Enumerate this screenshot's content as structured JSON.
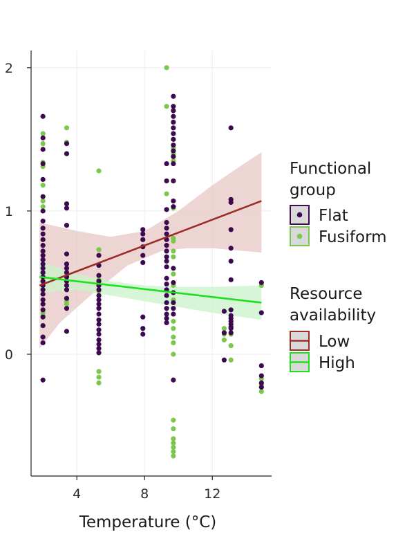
{
  "chart_data": {
    "type": "scatter",
    "title": "",
    "xlabel": "Temperature (°C)",
    "ylabel": "",
    "xlim": [
      1.3,
      15.5
    ],
    "ylim": [
      -0.85,
      2.12
    ],
    "x_ticks": [
      4,
      8,
      12
    ],
    "y_ticks": [
      0,
      1,
      2
    ],
    "grid": true,
    "legend_position": "right",
    "colors": {
      "flat": "#3d0a4f",
      "fusiform": "#7cc84f",
      "low": "#9b2d26",
      "low_band": "#e7c7c6",
      "high": "#1fe01f",
      "high_band": "#c9f3c9"
    },
    "legend": {
      "functional_group": {
        "title_lines": [
          "Functional",
          "group"
        ],
        "entries": [
          "Flat",
          "Fusiform"
        ]
      },
      "resource_availability": {
        "title_lines": [
          "Resource",
          "availability"
        ],
        "entries": [
          "Low",
          "High"
        ]
      }
    },
    "series": [
      {
        "name": "Flat",
        "points": [
          [
            2.0,
            1.66
          ],
          [
            2.0,
            1.51
          ],
          [
            2.0,
            1.43
          ],
          [
            2.0,
            1.33
          ],
          [
            2.0,
            1.22
          ],
          [
            2.0,
            1.1
          ],
          [
            2.0,
            1.0
          ],
          [
            2.0,
            0.93
          ],
          [
            2.0,
            0.88
          ],
          [
            2.0,
            0.84
          ],
          [
            2.0,
            0.8
          ],
          [
            2.0,
            0.76
          ],
          [
            2.0,
            0.72
          ],
          [
            2.0,
            0.69
          ],
          [
            2.0,
            0.66
          ],
          [
            2.0,
            0.63
          ],
          [
            2.0,
            0.6
          ],
          [
            2.0,
            0.57
          ],
          [
            2.0,
            0.54
          ],
          [
            2.0,
            0.51
          ],
          [
            2.0,
            0.48
          ],
          [
            2.0,
            0.45
          ],
          [
            2.0,
            0.42
          ],
          [
            2.0,
            0.38
          ],
          [
            2.0,
            0.35
          ],
          [
            2.0,
            0.31
          ],
          [
            2.0,
            0.26
          ],
          [
            2.0,
            0.2
          ],
          [
            2.0,
            0.12
          ],
          [
            2.0,
            0.08
          ],
          [
            2.0,
            -0.18
          ],
          [
            3.4,
            1.47
          ],
          [
            3.4,
            1.4
          ],
          [
            3.4,
            1.05
          ],
          [
            3.4,
            1.02
          ],
          [
            3.4,
            0.9
          ],
          [
            3.4,
            0.7
          ],
          [
            3.4,
            0.63
          ],
          [
            3.4,
            0.6
          ],
          [
            3.4,
            0.57
          ],
          [
            3.4,
            0.54
          ],
          [
            3.4,
            0.51
          ],
          [
            3.4,
            0.48
          ],
          [
            3.4,
            0.45
          ],
          [
            3.4,
            0.39
          ],
          [
            3.4,
            0.32
          ],
          [
            3.4,
            0.16
          ],
          [
            5.3,
            0.69
          ],
          [
            5.3,
            0.62
          ],
          [
            5.3,
            0.55
          ],
          [
            5.3,
            0.51
          ],
          [
            5.3,
            0.48
          ],
          [
            5.3,
            0.45
          ],
          [
            5.3,
            0.41
          ],
          [
            5.3,
            0.38
          ],
          [
            5.3,
            0.35
          ],
          [
            5.3,
            0.32
          ],
          [
            5.3,
            0.28
          ],
          [
            5.3,
            0.24
          ],
          [
            5.3,
            0.21
          ],
          [
            5.3,
            0.17
          ],
          [
            5.3,
            0.14
          ],
          [
            5.3,
            0.1
          ],
          [
            5.3,
            0.07
          ],
          [
            5.3,
            0.04
          ],
          [
            5.3,
            0.01
          ],
          [
            7.9,
            0.87
          ],
          [
            7.9,
            0.84
          ],
          [
            7.9,
            0.8
          ],
          [
            7.9,
            0.75
          ],
          [
            7.9,
            0.69
          ],
          [
            7.9,
            0.64
          ],
          [
            7.9,
            0.26
          ],
          [
            7.9,
            0.18
          ],
          [
            7.9,
            0.14
          ],
          [
            9.3,
            1.33
          ],
          [
            9.3,
            1.21
          ],
          [
            9.3,
            1.01
          ],
          [
            9.3,
            0.92
          ],
          [
            9.3,
            0.88
          ],
          [
            9.3,
            0.84
          ],
          [
            9.3,
            0.8
          ],
          [
            9.3,
            0.76
          ],
          [
            9.3,
            0.72
          ],
          [
            9.3,
            0.68
          ],
          [
            9.3,
            0.65
          ],
          [
            9.3,
            0.61
          ],
          [
            9.3,
            0.53
          ],
          [
            9.3,
            0.49
          ],
          [
            9.3,
            0.45
          ],
          [
            9.3,
            0.41
          ],
          [
            9.3,
            0.36
          ],
          [
            9.3,
            0.32
          ],
          [
            9.3,
            0.28
          ],
          [
            9.3,
            0.25
          ],
          [
            9.3,
            0.22
          ],
          [
            9.7,
            1.8
          ],
          [
            9.7,
            1.73
          ],
          [
            9.7,
            1.7
          ],
          [
            9.7,
            1.66
          ],
          [
            9.7,
            1.62
          ],
          [
            9.7,
            1.58
          ],
          [
            9.7,
            1.54
          ],
          [
            9.7,
            1.5
          ],
          [
            9.7,
            1.46
          ],
          [
            9.7,
            1.42
          ],
          [
            9.7,
            1.38
          ],
          [
            9.7,
            1.33
          ],
          [
            9.7,
            1.21
          ],
          [
            9.7,
            1.07
          ],
          [
            9.7,
            1.03
          ],
          [
            9.7,
            0.6
          ],
          [
            9.7,
            0.5
          ],
          [
            9.7,
            0.43
          ],
          [
            9.7,
            0.36
          ],
          [
            9.7,
            0.32
          ],
          [
            9.7,
            0.28
          ],
          [
            9.7,
            -0.18
          ],
          [
            13.1,
            1.58
          ],
          [
            13.1,
            1.08
          ],
          [
            13.1,
            1.06
          ],
          [
            13.1,
            0.87
          ],
          [
            13.1,
            0.74
          ],
          [
            13.1,
            0.65
          ],
          [
            13.1,
            0.52
          ],
          [
            13.1,
            0.31
          ],
          [
            13.1,
            0.27
          ],
          [
            13.1,
            0.25
          ],
          [
            13.1,
            0.23
          ],
          [
            13.1,
            0.21
          ],
          [
            13.1,
            0.19
          ],
          [
            13.1,
            0.18
          ],
          [
            13.1,
            0.15
          ],
          [
            12.7,
            0.3
          ],
          [
            12.7,
            0.15
          ],
          [
            12.7,
            -0.04
          ],
          [
            14.9,
            0.5
          ],
          [
            14.9,
            0.29
          ],
          [
            14.9,
            -0.08
          ],
          [
            14.9,
            -0.15
          ],
          [
            14.9,
            -0.2
          ],
          [
            14.9,
            -0.23
          ]
        ]
      },
      {
        "name": "Fusiform",
        "points": [
          [
            2.0,
            1.54
          ],
          [
            2.0,
            1.47
          ],
          [
            2.0,
            1.34
          ],
          [
            2.0,
            1.31
          ],
          [
            2.0,
            1.18
          ],
          [
            2.0,
            1.07
          ],
          [
            2.0,
            1.03
          ],
          [
            2.0,
            0.29
          ],
          [
            2.0,
            0.27
          ],
          [
            3.4,
            1.58
          ],
          [
            3.4,
            1.48
          ],
          [
            3.4,
            0.37
          ],
          [
            3.4,
            0.35
          ],
          [
            5.3,
            1.28
          ],
          [
            5.3,
            0.73
          ],
          [
            5.3,
            0.52
          ],
          [
            5.3,
            0.44
          ],
          [
            5.3,
            -0.12
          ],
          [
            5.3,
            -0.16
          ],
          [
            5.3,
            -0.2
          ],
          [
            9.3,
            2.0
          ],
          [
            9.3,
            1.73
          ],
          [
            9.3,
            1.12
          ],
          [
            9.7,
            1.5
          ],
          [
            9.7,
            1.44
          ],
          [
            9.7,
            1.4
          ],
          [
            9.7,
            1.35
          ],
          [
            9.7,
            1.21
          ],
          [
            9.7,
            1.02
          ],
          [
            9.7,
            0.81
          ],
          [
            9.7,
            0.79
          ],
          [
            9.7,
            0.72
          ],
          [
            9.7,
            0.68
          ],
          [
            9.7,
            0.56
          ],
          [
            9.7,
            0.48
          ],
          [
            9.7,
            0.38
          ],
          [
            9.7,
            0.23
          ],
          [
            9.7,
            0.18
          ],
          [
            9.7,
            0.12
          ],
          [
            9.7,
            0.08
          ],
          [
            9.7,
            0.0
          ],
          [
            9.7,
            -0.46
          ],
          [
            9.7,
            -0.52
          ],
          [
            9.7,
            -0.59
          ],
          [
            9.7,
            -0.62
          ],
          [
            9.7,
            -0.65
          ],
          [
            9.7,
            -0.68
          ],
          [
            9.7,
            -0.71
          ],
          [
            12.7,
            0.18
          ],
          [
            12.7,
            0.14
          ],
          [
            12.7,
            0.1
          ],
          [
            13.1,
            0.14
          ],
          [
            13.1,
            0.06
          ],
          [
            13.1,
            -0.04
          ],
          [
            14.9,
            0.48
          ],
          [
            14.9,
            -0.17
          ],
          [
            14.9,
            -0.21
          ],
          [
            14.9,
            -0.26
          ]
        ]
      }
    ],
    "fits": [
      {
        "name": "Low",
        "line": [
          [
            1.8,
            0.48
          ],
          [
            14.9,
            1.07
          ]
        ],
        "band_upper": [
          [
            1.8,
            0.92
          ],
          [
            4.0,
            0.86
          ],
          [
            6.0,
            0.82
          ],
          [
            8.0,
            0.86
          ],
          [
            10.0,
            1.0
          ],
          [
            12.0,
            1.18
          ],
          [
            13.5,
            1.3
          ],
          [
            14.9,
            1.41
          ]
        ],
        "band_lower": [
          [
            1.8,
            0.04
          ],
          [
            3.0,
            0.22
          ],
          [
            5.0,
            0.43
          ],
          [
            7.0,
            0.62
          ],
          [
            9.0,
            0.72
          ],
          [
            10.5,
            0.74
          ],
          [
            12.0,
            0.74
          ],
          [
            14.9,
            0.71
          ]
        ]
      },
      {
        "name": "High",
        "line": [
          [
            1.8,
            0.54
          ],
          [
            14.9,
            0.36
          ]
        ],
        "band_upper": [
          [
            1.8,
            0.65
          ],
          [
            4.0,
            0.56
          ],
          [
            6.0,
            0.51
          ],
          [
            8.0,
            0.48
          ],
          [
            10.0,
            0.47
          ],
          [
            12.0,
            0.47
          ],
          [
            14.9,
            0.48
          ]
        ],
        "band_lower": [
          [
            1.8,
            0.43
          ],
          [
            4.0,
            0.45
          ],
          [
            6.0,
            0.41
          ],
          [
            8.0,
            0.37
          ],
          [
            10.0,
            0.33
          ],
          [
            12.0,
            0.29
          ],
          [
            14.9,
            0.24
          ]
        ]
      }
    ]
  }
}
